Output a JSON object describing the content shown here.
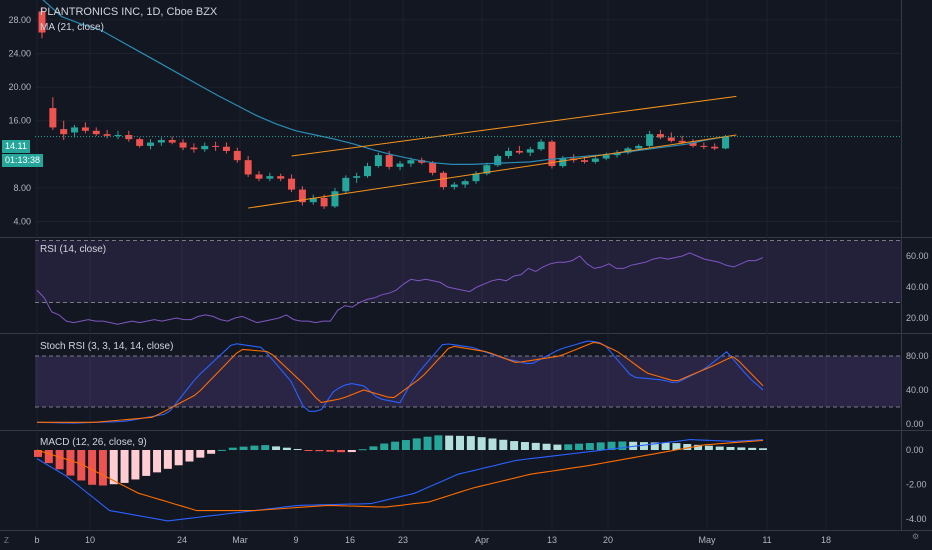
{
  "header": {
    "title": "PLANTRONICS INC, 1D, Cboe BZX",
    "ma_label": "MA (21, close)"
  },
  "price_badge": {
    "value": "14.11",
    "countdown": "01:13:38",
    "color": "#26a69a"
  },
  "rsi": {
    "label": "RSI (14, close)",
    "ticks": [
      "60.00",
      "40.00",
      "20.00"
    ]
  },
  "stoch": {
    "label": "Stoch RSI (3, 3, 14, 14, close)",
    "ticks": [
      "80.00",
      "40.00",
      "0.00"
    ]
  },
  "macd": {
    "label": "MACD (12, 26, close, 9)",
    "ticks": [
      "0.00",
      "-2.00",
      "-4.00"
    ]
  },
  "price_ticks": [
    "28.00",
    "24.00",
    "20.00",
    "16.00",
    "8.00",
    "4.00"
  ],
  "x_ticks": [
    "b",
    "10",
    "24",
    "Mar",
    "9",
    "16",
    "23",
    "Apr",
    "13",
    "20",
    "May",
    "11",
    "18"
  ],
  "corner_left": "Z",
  "colors": {
    "up": "#26a69a",
    "down": "#ef5350",
    "ma": "#2a8db5",
    "channel": "#f7931a",
    "rsi": "#7e57c2",
    "k": "#2962ff",
    "d": "#ff6d00"
  },
  "chart_data": {
    "type": "candlestick",
    "title": "PLANTRONICS INC, 1D, Cboe BZX",
    "candles": [
      [
        29.0,
        29.5,
        25.8,
        26.5
      ],
      [
        17.5,
        18.8,
        14.9,
        15.2
      ],
      [
        15.0,
        16.0,
        13.7,
        14.4
      ],
      [
        14.6,
        15.5,
        14.0,
        15.2
      ],
      [
        15.2,
        15.8,
        14.5,
        14.8
      ],
      [
        14.8,
        15.2,
        14.2,
        14.4
      ],
      [
        14.4,
        14.9,
        13.9,
        14.2
      ],
      [
        14.2,
        14.8,
        13.8,
        14.3
      ],
      [
        14.3,
        14.8,
        13.5,
        13.8
      ],
      [
        13.8,
        14.0,
        12.8,
        13.0
      ],
      [
        13.0,
        13.8,
        12.6,
        13.4
      ],
      [
        13.4,
        14.0,
        13.0,
        13.7
      ],
      [
        13.7,
        14.1,
        13.2,
        13.4
      ],
      [
        13.4,
        13.8,
        12.5,
        12.8
      ],
      [
        12.8,
        13.3,
        12.2,
        12.6
      ],
      [
        12.6,
        13.4,
        12.3,
        13.0
      ],
      [
        13.0,
        13.5,
        12.4,
        12.9
      ],
      [
        12.9,
        13.4,
        12.1,
        12.4
      ],
      [
        12.4,
        12.8,
        11.0,
        11.3
      ],
      [
        11.3,
        11.8,
        9.3,
        9.6
      ],
      [
        9.6,
        10.0,
        8.8,
        9.1
      ],
      [
        9.1,
        9.8,
        8.8,
        9.4
      ],
      [
        9.4,
        9.7,
        8.8,
        9.1
      ],
      [
        9.1,
        9.6,
        7.5,
        7.8
      ],
      [
        7.8,
        8.2,
        5.9,
        6.3
      ],
      [
        6.3,
        7.2,
        6.0,
        6.8
      ],
      [
        6.8,
        7.2,
        5.5,
        5.8
      ],
      [
        5.8,
        8.0,
        5.6,
        7.6
      ],
      [
        7.6,
        9.5,
        7.3,
        9.2
      ],
      [
        9.2,
        9.8,
        8.6,
        9.4
      ],
      [
        9.4,
        11.0,
        9.2,
        10.6
      ],
      [
        10.6,
        12.2,
        10.4,
        11.9
      ],
      [
        11.9,
        12.4,
        10.2,
        10.5
      ],
      [
        10.5,
        11.2,
        10.1,
        10.9
      ],
      [
        10.9,
        11.6,
        10.5,
        11.3
      ],
      [
        11.3,
        11.6,
        10.8,
        11.0
      ],
      [
        11.0,
        11.2,
        9.5,
        9.8
      ],
      [
        9.8,
        10.0,
        7.8,
        8.1
      ],
      [
        8.1,
        8.7,
        7.8,
        8.4
      ],
      [
        8.4,
        9.0,
        8.0,
        8.8
      ],
      [
        8.8,
        10.0,
        8.5,
        9.7
      ],
      [
        9.7,
        11.0,
        9.5,
        10.7
      ],
      [
        10.7,
        12.0,
        10.5,
        11.8
      ],
      [
        11.8,
        12.8,
        11.5,
        12.4
      ],
      [
        12.4,
        13.0,
        12.0,
        12.2
      ],
      [
        12.2,
        12.9,
        11.8,
        12.6
      ],
      [
        12.6,
        13.8,
        12.4,
        13.5
      ],
      [
        13.5,
        13.7,
        10.3,
        10.6
      ],
      [
        10.6,
        11.8,
        10.4,
        11.5
      ],
      [
        11.5,
        12.0,
        11.0,
        11.3
      ],
      [
        11.3,
        11.8,
        10.9,
        11.1
      ],
      [
        11.1,
        11.8,
        10.9,
        11.5
      ],
      [
        11.5,
        12.2,
        11.3,
        11.9
      ],
      [
        11.9,
        12.5,
        11.6,
        12.2
      ],
      [
        12.2,
        12.9,
        12.0,
        12.7
      ],
      [
        12.7,
        13.2,
        12.4,
        13.0
      ],
      [
        13.0,
        14.8,
        12.8,
        14.4
      ],
      [
        14.4,
        14.9,
        13.8,
        14.0
      ],
      [
        14.0,
        14.6,
        13.4,
        13.6
      ],
      [
        13.6,
        14.2,
        13.2,
        13.4
      ],
      [
        13.4,
        13.8,
        12.8,
        13.0
      ],
      [
        13.0,
        13.4,
        12.6,
        12.9
      ],
      [
        12.9,
        13.3,
        12.5,
        12.7
      ],
      [
        12.7,
        14.3,
        12.6,
        14.11
      ]
    ],
    "ma21": [
      30.5,
      28.4,
      27.5,
      26.8,
      25.5,
      24.2,
      22.9,
      21.6,
      20.3,
      19.0,
      17.8,
      16.6,
      15.6,
      14.8,
      14.3,
      13.8,
      13.2,
      12.5,
      11.9,
      11.4,
      11.0,
      10.8,
      10.8,
      10.9,
      11.0,
      11.1,
      11.4,
      11.6,
      11.8,
      12.0,
      12.3,
      12.6,
      12.9,
      13.2,
      13.7,
      14.1
    ],
    "channel_upper": [
      [
        23.0,
        11.8
      ],
      [
        64.0,
        18.9
      ]
    ],
    "channel_lower": [
      [
        19.0,
        5.6
      ],
      [
        64.0,
        14.3
      ]
    ],
    "rsi_values": [
      38,
      33,
      24,
      22,
      18,
      17,
      18,
      19,
      18,
      18,
      17,
      16,
      17,
      18,
      17,
      18,
      19,
      18,
      19,
      20,
      19,
      19,
      21,
      22,
      21,
      19,
      18,
      20,
      21,
      19,
      17,
      18,
      19,
      20,
      22,
      19,
      18,
      18,
      17,
      18,
      18,
      25,
      28,
      27,
      30,
      32,
      33,
      35,
      36,
      38,
      42,
      45,
      44,
      45,
      44,
      43,
      40,
      39,
      38,
      37,
      40,
      42,
      44,
      45,
      44,
      47,
      48,
      52,
      50,
      53,
      55,
      56,
      56,
      57,
      60,
      55,
      52,
      53,
      55,
      52,
      52,
      54,
      55,
      56,
      58,
      59,
      58,
      59,
      60,
      62,
      60,
      58,
      57,
      56,
      54,
      53,
      55,
      57,
      57,
      59
    ]
  }
}
